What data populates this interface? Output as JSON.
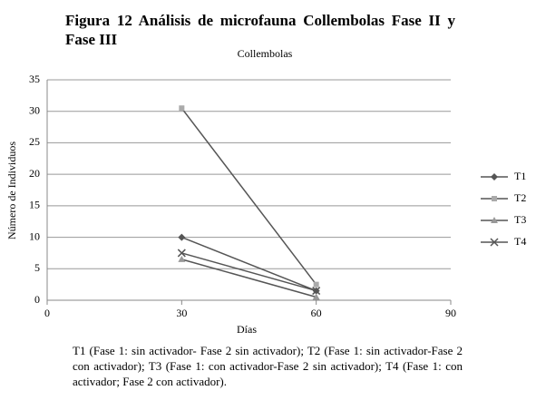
{
  "document": {
    "title": "Figura 12 Análisis de microfauna Collembolas Fase II y Fase III",
    "caption": "T1 (Fase 1: sin activador- Fase 2 sin activador); T2 (Fase 1: sin activador-Fase 2 con activador); T3 (Fase 1: con activador-Fase 2 sin activador); T4 (Fase 1: con activador; Fase 2 con activador)."
  },
  "chart_data": {
    "type": "line",
    "title": "Collembolas",
    "x_label": "Días",
    "y_label": "Número de Individuos",
    "x": [
      30,
      60
    ],
    "series": [
      {
        "name": "T1",
        "color": "#555555",
        "marker": "diamond",
        "values": [
          10,
          1.5
        ]
      },
      {
        "name": "T2",
        "color": "#555555",
        "marker": "square",
        "values": [
          30.5,
          2.5
        ]
      },
      {
        "name": "T3",
        "color": "#555555",
        "marker": "triangle",
        "values": [
          6.5,
          0.5
        ]
      },
      {
        "name": "T4",
        "color": "#555555",
        "marker": "x",
        "values": [
          7.5,
          1.5
        ]
      }
    ],
    "xlim": [
      0,
      90
    ],
    "xticks": [
      0,
      30,
      60,
      90
    ],
    "ylim": [
      0,
      35
    ],
    "yticks": [
      0,
      5,
      10,
      15,
      20,
      25,
      30,
      35
    ],
    "grid": true,
    "legend": "right"
  }
}
